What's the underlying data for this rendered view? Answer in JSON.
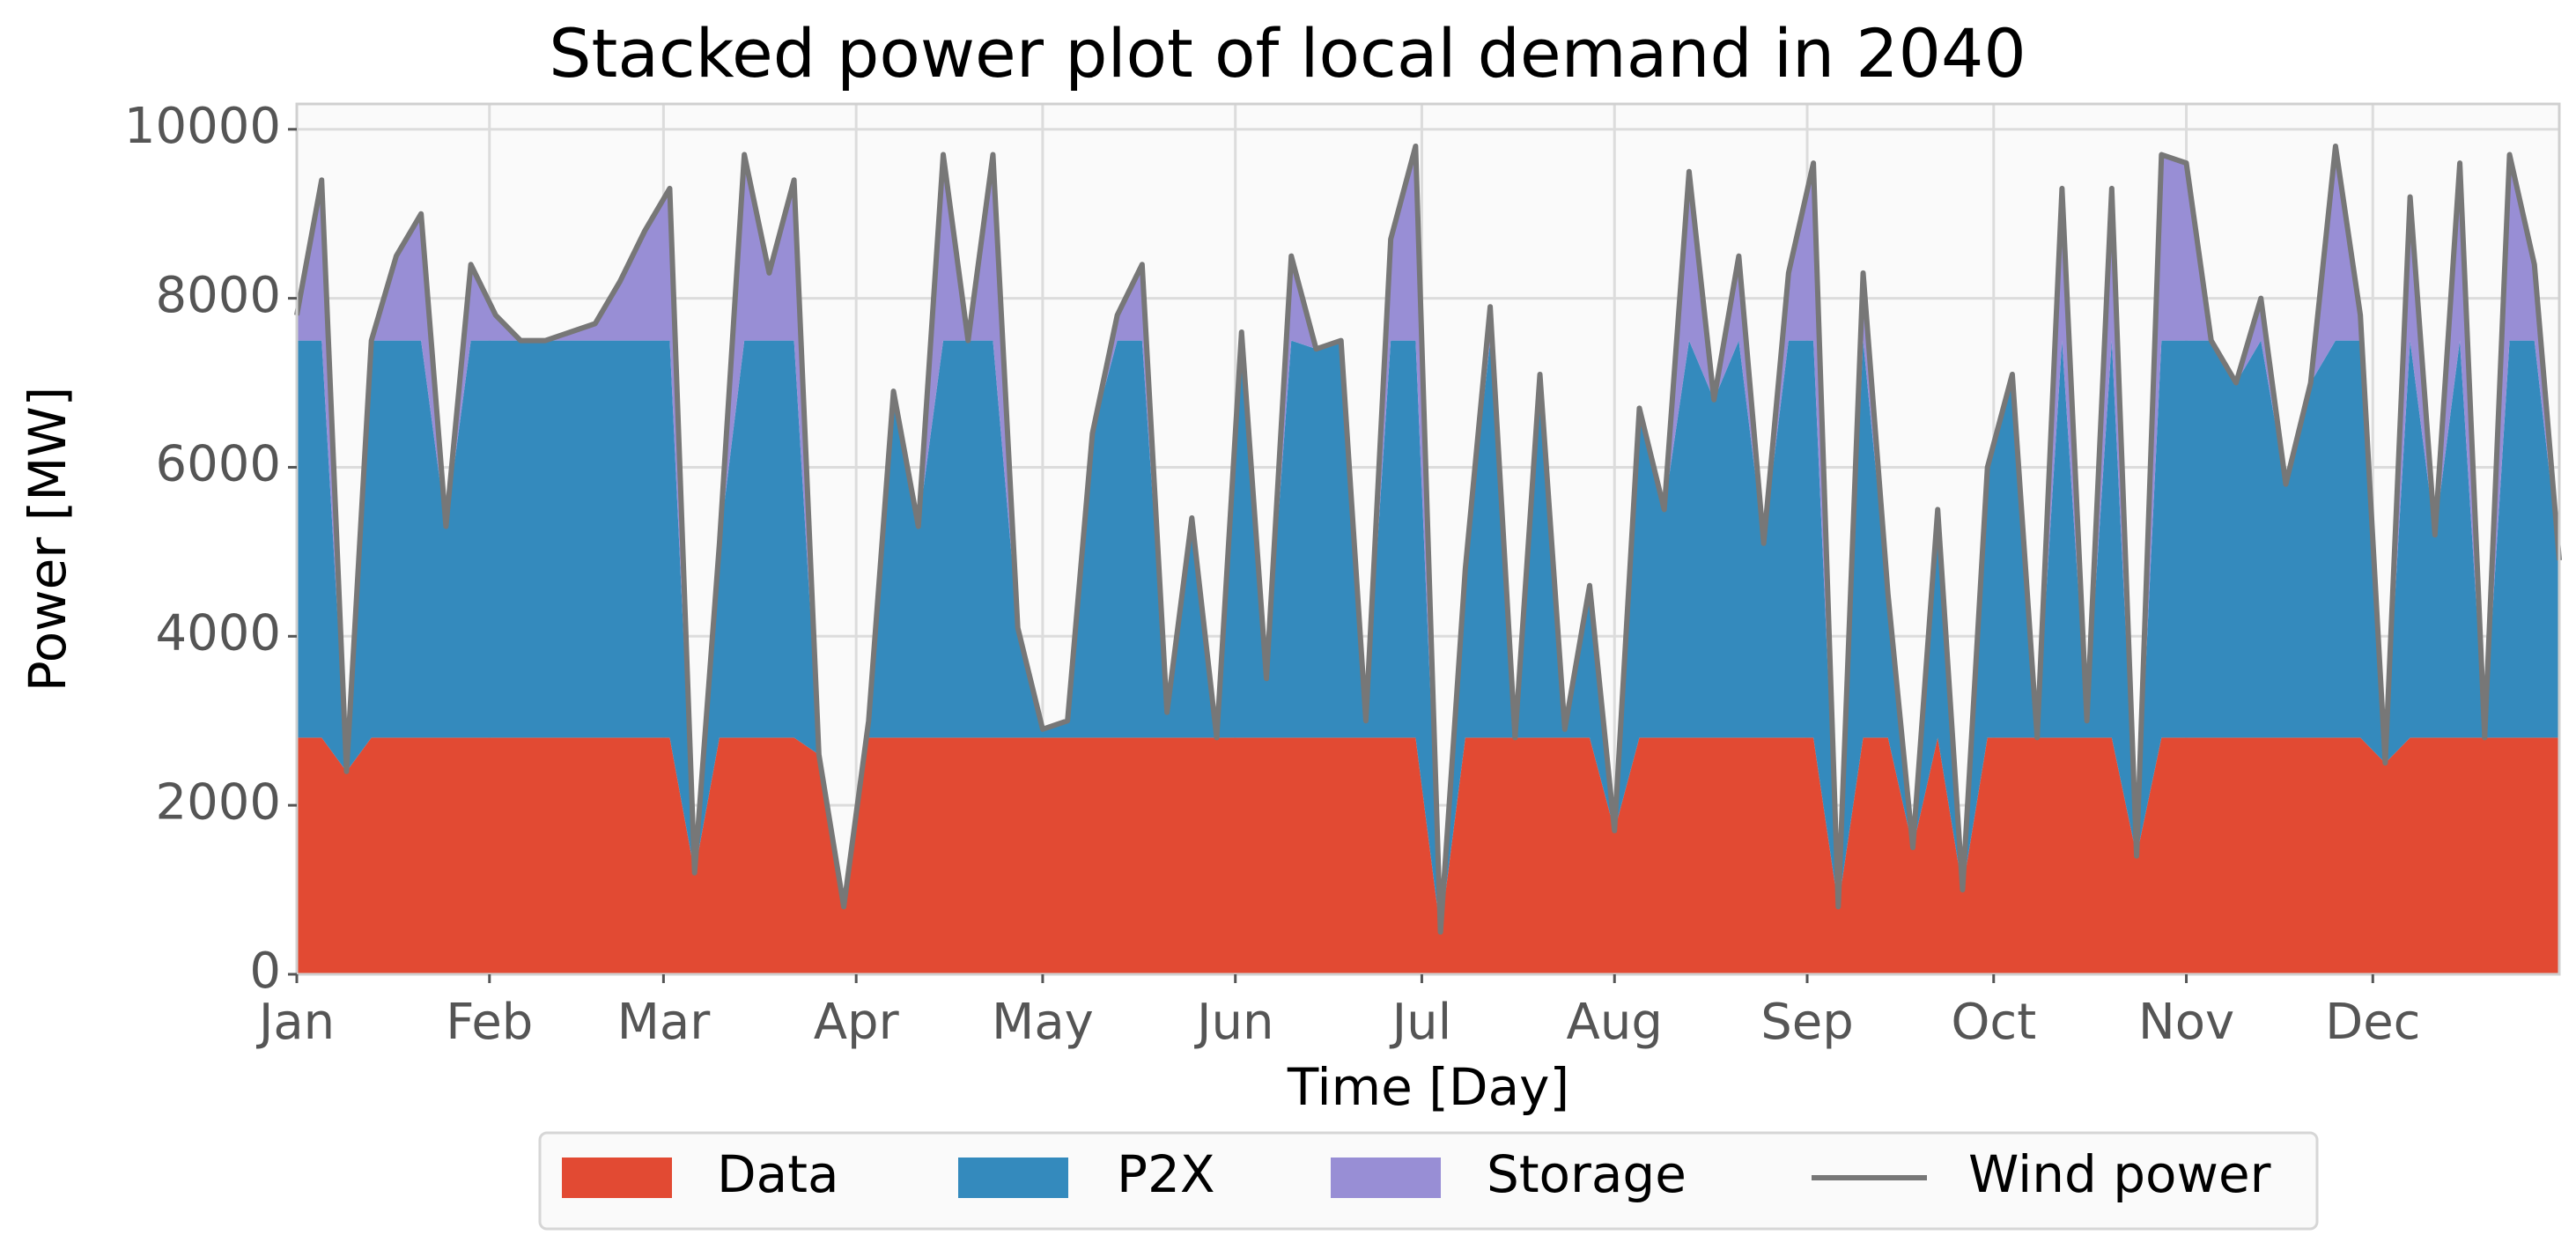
{
  "chart_data": {
    "type": "area",
    "title": "Stacked power plot of local demand in 2040",
    "xlabel": "Time [Day]",
    "ylabel": "Power [MW]",
    "x": [
      0,
      4,
      8,
      12,
      16,
      20,
      24,
      28,
      32,
      36,
      40,
      44,
      48,
      52,
      56,
      60,
      64,
      68,
      72,
      76,
      80,
      84,
      88,
      92,
      96,
      100,
      104,
      108,
      112,
      116,
      120,
      124,
      128,
      132,
      136,
      140,
      144,
      148,
      152,
      156,
      160,
      164,
      168,
      172,
      176,
      180,
      184,
      188,
      192,
      196,
      200,
      204,
      208,
      212,
      216,
      220,
      224,
      228,
      232,
      236,
      240,
      244,
      248,
      252,
      256,
      260,
      264,
      268,
      272,
      276,
      280,
      284,
      288,
      292,
      296,
      300,
      304,
      308,
      312,
      316,
      320,
      324,
      328,
      332,
      336,
      340,
      344,
      348,
      352,
      356,
      360,
      364
    ],
    "series": [
      {
        "name": "Data",
        "color": "#E24A33",
        "type": "area",
        "values": [
          2800,
          2800,
          2400,
          2800,
          2800,
          2800,
          2800,
          2800,
          2800,
          2800,
          2800,
          2800,
          2800,
          2800,
          2800,
          2800,
          1200,
          2800,
          2800,
          2800,
          2800,
          2600,
          800,
          2800,
          2800,
          2800,
          2800,
          2800,
          2800,
          2800,
          2800,
          2800,
          2800,
          2800,
          2800,
          2800,
          2800,
          2800,
          2800,
          2800,
          2800,
          2800,
          2800,
          2800,
          2800,
          2800,
          500,
          2800,
          2800,
          2800,
          2800,
          2800,
          2800,
          1700,
          2800,
          2800,
          2800,
          2800,
          2800,
          2800,
          2800,
          2800,
          800,
          2800,
          2800,
          1500,
          2800,
          1000,
          2800,
          2800,
          2800,
          2800,
          2800,
          2800,
          1400,
          2800,
          2800,
          2800,
          2800,
          2800,
          2800,
          2800,
          2800,
          2800,
          2500,
          2800,
          2800,
          2800,
          2800,
          2800,
          2800,
          2800
        ]
      },
      {
        "name": "P2X",
        "color": "#348ABD",
        "type": "area",
        "values": [
          4700,
          4700,
          0,
          4700,
          4700,
          4700,
          2500,
          4700,
          4700,
          4700,
          4700,
          4700,
          4700,
          4700,
          4700,
          4700,
          0,
          2300,
          4700,
          4700,
          4700,
          0,
          0,
          200,
          4100,
          2500,
          4700,
          4700,
          4700,
          1300,
          100,
          200,
          3600,
          4700,
          4700,
          300,
          2600,
          0,
          4700,
          700,
          4700,
          4600,
          4700,
          200,
          4700,
          4700,
          0,
          2000,
          4700,
          0,
          4300,
          100,
          1800,
          0,
          3900,
          2700,
          4700,
          4000,
          4700,
          2300,
          4700,
          4700,
          0,
          4700,
          1700,
          0,
          2700,
          0,
          3200,
          4300,
          0,
          4700,
          200,
          4700,
          0,
          4700,
          4700,
          4700,
          4200,
          4700,
          3000,
          4200,
          4700,
          4700,
          0,
          4700,
          2400,
          4700,
          0,
          4700,
          4700,
          2100
        ]
      },
      {
        "name": "Storage",
        "color": "#988ED5",
        "type": "area",
        "values": [
          300,
          1900,
          0,
          0,
          1000,
          1500,
          0,
          900,
          300,
          0,
          0,
          100,
          200,
          700,
          1300,
          1800,
          0,
          0,
          2200,
          800,
          1900,
          0,
          0,
          0,
          0,
          0,
          2200,
          0,
          2200,
          0,
          0,
          0,
          0,
          300,
          900,
          0,
          0,
          0,
          100,
          0,
          1000,
          0,
          0,
          0,
          1200,
          2300,
          0,
          0,
          400,
          0,
          0,
          0,
          0,
          0,
          0,
          0,
          2000,
          0,
          1000,
          0,
          800,
          2100,
          0,
          800,
          0,
          0,
          0,
          0,
          0,
          0,
          0,
          1800,
          0,
          1800,
          0,
          2200,
          2100,
          0,
          0,
          500,
          0,
          0,
          2300,
          300,
          0,
          1700,
          0,
          2100,
          0,
          2200,
          900,
          0
        ]
      },
      {
        "name": "Wind power",
        "color": "#777777",
        "type": "line",
        "values": [
          7800,
          9400,
          2400,
          7500,
          8500,
          9000,
          5300,
          8400,
          7800,
          7500,
          7500,
          7600,
          7700,
          8200,
          8800,
          9300,
          1200,
          5100,
          9700,
          8300,
          9400,
          2600,
          800,
          3000,
          6900,
          5300,
          9700,
          7500,
          9700,
          4100,
          2900,
          3000,
          6400,
          7800,
          8400,
          3100,
          5400,
          2800,
          7600,
          3500,
          8500,
          7400,
          7500,
          3000,
          8700,
          9800,
          500,
          4800,
          7900,
          2800,
          7100,
          2900,
          4600,
          1700,
          6700,
          5500,
          9500,
          6800,
          8500,
          5100,
          8300,
          9600,
          800,
          8300,
          4500,
          1500,
          5500,
          1000,
          6000,
          7100,
          2800,
          9300,
          3000,
          9300,
          1400,
          9700,
          9600,
          7500,
          7000,
          8000,
          5800,
          7000,
          9800,
          7800,
          2500,
          9200,
          5200,
          9600,
          2800,
          9700,
          8400,
          4900
        ]
      }
    ],
    "xlim": [
      0,
      364
    ],
    "ylim": [
      0,
      10300
    ],
    "xticks": [
      {
        "value": 0,
        "label": "Jan"
      },
      {
        "value": 31,
        "label": "Feb"
      },
      {
        "value": 59,
        "label": "Mar"
      },
      {
        "value": 90,
        "label": "Apr"
      },
      {
        "value": 120,
        "label": "May"
      },
      {
        "value": 151,
        "label": "Jun"
      },
      {
        "value": 181,
        "label": "Jul"
      },
      {
        "value": 212,
        "label": "Aug"
      },
      {
        "value": 243,
        "label": "Sep"
      },
      {
        "value": 273,
        "label": "Oct"
      },
      {
        "value": 304,
        "label": "Nov"
      },
      {
        "value": 334,
        "label": "Dec"
      }
    ],
    "yticks": [
      0,
      2000,
      4000,
      6000,
      8000,
      10000
    ],
    "grid": true,
    "legend": "bottom"
  }
}
